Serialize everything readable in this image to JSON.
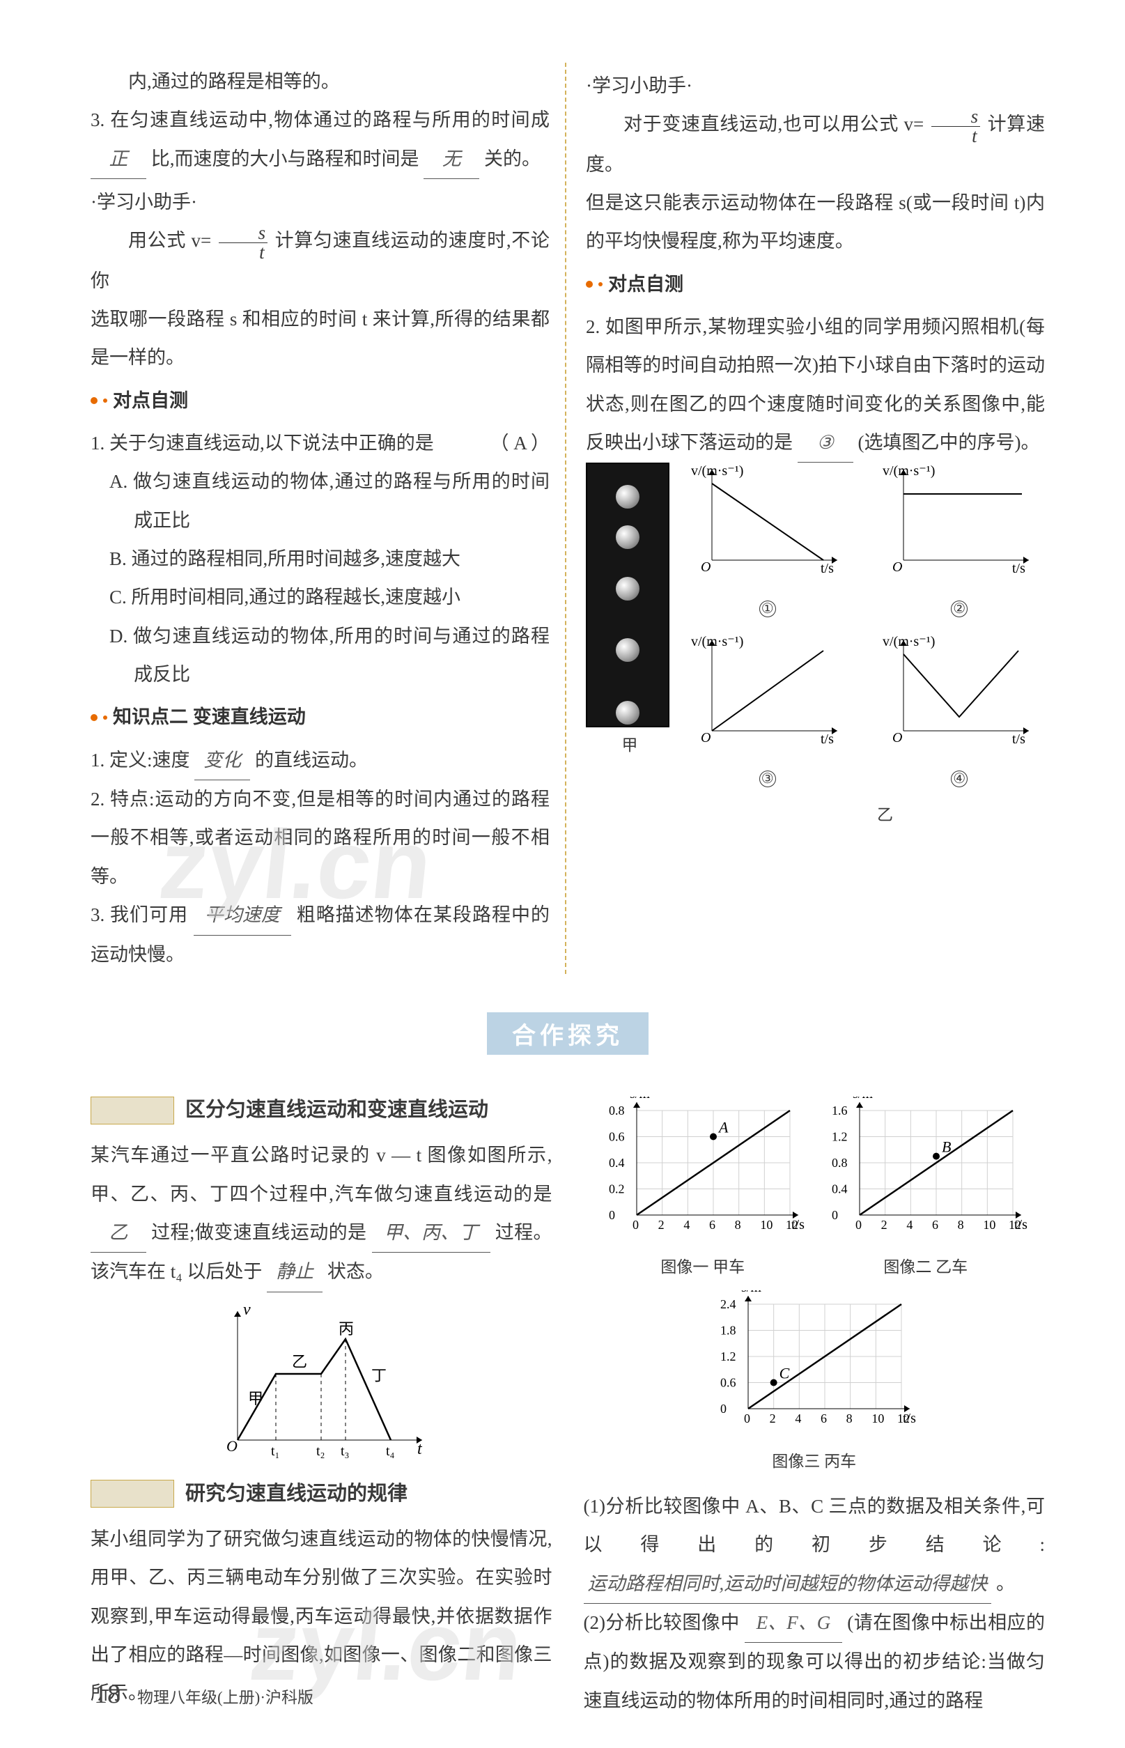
{
  "top": {
    "left": {
      "l0": "内,通过的路程是相等的。",
      "item3_a": "3. 在匀速直线运动中,物体通过的路程与所用的时间成",
      "blank_a": "正",
      "item3_b": "比,而速度的大小与路程和时间是",
      "blank_b": "无",
      "item3_c": "关的。",
      "tip_title": "·学习小助手·",
      "tip1": "用公式 v=",
      "tip2": "计算匀速直线运动的速度时,不论你",
      "tip3": "选取哪一段路程 s 和相应的时间 t 来计算,所得的结果都是一样的。",
      "check_head": "对点自测",
      "q1_stem": "1. 关于匀速直线运动,以下说法中正确的是",
      "q1_paren": "（  A  ）",
      "q1_A": "A. 做匀速直线运动的物体,通过的路程与所用的时间成正比",
      "q1_B": "B. 通过的路程相同,所用时间越多,速度越大",
      "q1_C": "C. 所用时间相同,通过的路程越长,速度越小",
      "q1_D": "D. 做匀速直线运动的物体,所用的时间与通过的路程成反比",
      "kp2_head": "知识点二  变速直线运动",
      "kp2_1a": "1. 定义:速度",
      "kp2_1blank": "变化",
      "kp2_1b": "的直线运动。",
      "kp2_2": "2. 特点:运动的方向不变,但是相等的时间内通过的路程一般不相等,或者运动相同的路程所用的时间一般不相等。",
      "kp2_3a": "3. 我们可用",
      "kp2_3blank": "平均速度",
      "kp2_3b": "粗略描述物体在某段路程中的运动快慢。"
    },
    "right": {
      "tip_title": "·学习小助手·",
      "r1a": "对于变速直线运动,也可以用公式 v=",
      "r1b": "计算速度。",
      "r2": "但是这只能表示运动物体在一段路程 s(或一段时间 t)内的平均快慢程度,称为平均速度。",
      "check_head": "对点自测",
      "q2a": "2. 如图甲所示,某物理实验小组的同学用频闪照相机(每隔相等的时间自动拍照一次)拍下小球自由下落时的运动状态,则在图乙的四个速度随时间变化的关系图像中,能反映出小球下落运动的是",
      "q2_blank": "③",
      "q2b": "(选填图乙中的序号)。",
      "ax_v": "v/(m·s⁻¹)",
      "ax_t": "t/s",
      "cap_jia": "甲",
      "cap_yi": "乙",
      "n1": "①",
      "n2": "②",
      "n3": "③",
      "n4": "④",
      "balls": [
        30,
        88,
        162,
        250,
        345
      ]
    },
    "frac": {
      "num": "s",
      "den": "t"
    }
  },
  "section_title": "合作探究",
  "bottom": {
    "left": {
      "task1_title": "区分匀速直线运动和变速直线运动",
      "p1a": "某汽车通过一平直公路时记录的 v — t 图像如图所示,甲、乙、丙、丁四个过程中,汽车做匀速直线运动的是",
      "p1_blank1": "乙",
      "p1b": "过程;做变速直线运动的是",
      "p1_blank2": "甲、丙、丁",
      "p1c": "过程。该汽车在 t₄ 以后处于",
      "p1_blank3": "静止",
      "p1d": "状态。",
      "vt": {
        "v_label": "v",
        "t_label": "t",
        "O": "O",
        "t1": "t₁",
        "t2": "t₂",
        "t3": "t₃",
        "t4": "t₄",
        "seg": {
          "a": "甲",
          "b": "乙",
          "c": "丙",
          "d": "丁"
        },
        "pts": [
          [
            0,
            0
          ],
          [
            42,
            70
          ],
          [
            90,
            70
          ],
          [
            118,
            110
          ],
          [
            165,
            0
          ]
        ]
      },
      "task2_title": "研究匀速直线运动的规律",
      "p2": "某小组同学为了研究做匀速直线运动的物体的快慢情况,用甲、乙、丙三辆电动车分别做了三次实验。在实验时观察到,甲车运动得最慢,丙车运动得最快,并依据数据作出了相应的路程—时间图像,如图像一、图像二和图像三所示。"
    },
    "right": {
      "charts": {
        "ylabel": "s/m",
        "xlabel": "t/s",
        "jia": {
          "title": "图像一  甲车",
          "yticks": [
            "0",
            "0.2",
            "0.4",
            "0.6",
            "0.8"
          ],
          "xticks": [
            "0",
            "2",
            "4",
            "6",
            "8",
            "10",
            "12"
          ],
          "point_label": "A",
          "slope": 0.1
        },
        "yi": {
          "title": "图像二  乙车",
          "yticks": [
            "0",
            "0.4",
            "0.8",
            "1.2",
            "1.6"
          ],
          "xticks": [
            "0",
            "2",
            "4",
            "6",
            "8",
            "10",
            "12"
          ],
          "point_label": "B",
          "slope": 0.15
        },
        "bing": {
          "title": "图像三  丙车",
          "yticks": [
            "0",
            "0.6",
            "1.2",
            "1.8",
            "2.4"
          ],
          "xticks": [
            "0",
            "2",
            "4",
            "6",
            "8",
            "10",
            "12"
          ],
          "point_label": "C",
          "slope": 0.3
        }
      },
      "q1a": "(1)分析比较图像中 A、B、C 三点的数据及相关条件,可以得出的初步结论:",
      "q1_blank": "运动路程相同时,运动时间越短的物体运动得越快",
      "q1b": "。",
      "q2a": "(2)分析比较图像中",
      "q2_blank": "E、F、G",
      "q2b": "(请在图像中标出相应的点)的数据及观察到的现象可以得出的初步结论:当做匀速直线运动的物体所用的时间相同时,通过的路程"
    }
  },
  "watermarks": {
    "wm1": "zyl.cn",
    "wm2": "zyl.cn"
  },
  "footer": {
    "page": "18",
    "text": "物理八年级(上册)·沪科版"
  },
  "style": {
    "grid_color": "#d0d0d0",
    "axis_color": "#000000",
    "line_color": "#000000"
  }
}
